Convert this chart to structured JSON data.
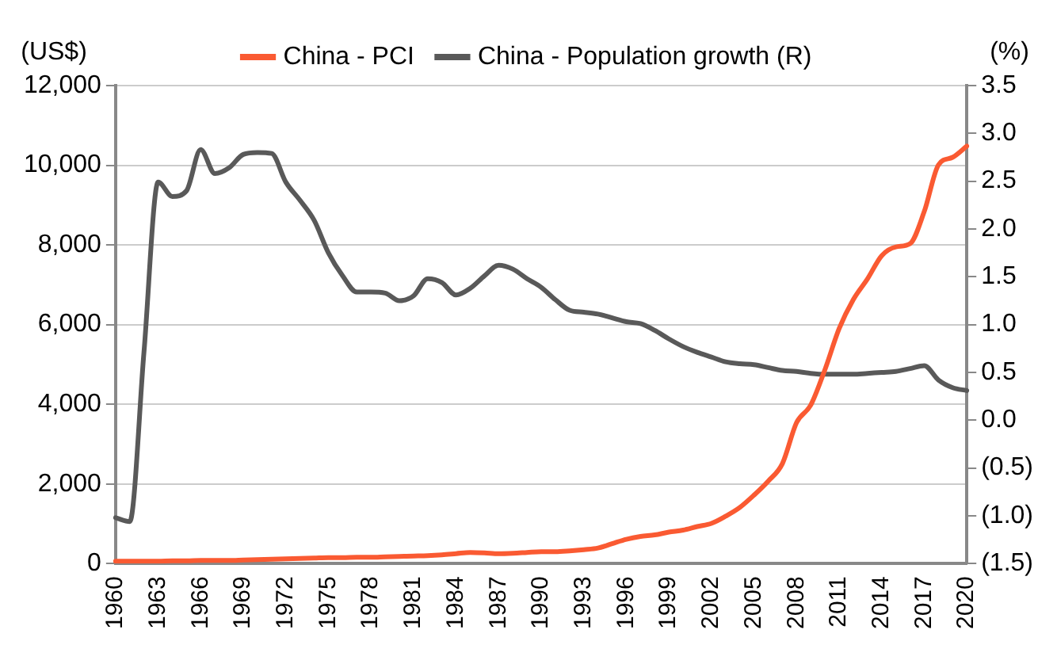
{
  "chart_data": {
    "type": "line",
    "ylabel": "(US$)",
    "y2label": "(%)",
    "categories": [
      "1960",
      null,
      null,
      "1963",
      null,
      null,
      "1966",
      null,
      null,
      "1969",
      null,
      null,
      "1972",
      null,
      null,
      "1975",
      null,
      null,
      "1978",
      null,
      null,
      "1981",
      null,
      null,
      "1984",
      null,
      null,
      "1987",
      null,
      null,
      "1990",
      null,
      null,
      "1993",
      null,
      null,
      "1996",
      null,
      null,
      "1999",
      null,
      null,
      "2002",
      null,
      null,
      "2005",
      null,
      null,
      "2008",
      null,
      null,
      "2011",
      null,
      null,
      "2014",
      null,
      null,
      "2017",
      null,
      null,
      "2020"
    ],
    "series": [
      {
        "name": "China - PCI",
        "color": "#fa5a32",
        "values": [
          60,
          60,
          60,
          60,
          70,
          70,
          80,
          80,
          80,
          90,
          100,
          110,
          120,
          130,
          140,
          150,
          150,
          160,
          160,
          170,
          180,
          190,
          200,
          220,
          250,
          280,
          270,
          250,
          260,
          280,
          300,
          300,
          320,
          350,
          390,
          500,
          610,
          680,
          720,
          790,
          840,
          930,
          1010,
          1190,
          1410,
          1720,
          2070,
          2510,
          3540,
          3980,
          4870,
          5900,
          6630,
          7150,
          7730,
          7950,
          8030,
          8840,
          10010,
          10200,
          10480
        ]
      },
      {
        "name": "China - Population growth (R)",
        "color": "#595959",
        "axis": "y2",
        "values": [
          -1.02,
          -1.06,
          0.71,
          2.49,
          2.34,
          2.4,
          2.83,
          2.58,
          2.64,
          2.78,
          2.8,
          2.79,
          2.49,
          2.3,
          2.09,
          1.75,
          1.51,
          1.34,
          1.34,
          1.33,
          1.25,
          1.3,
          1.48,
          1.44,
          1.31,
          1.38,
          1.51,
          1.62,
          1.58,
          1.48,
          1.39,
          1.26,
          1.15,
          1.13,
          1.11,
          1.07,
          1.03,
          1.01,
          0.94,
          0.85,
          0.77,
          0.71,
          0.66,
          0.61,
          0.59,
          0.58,
          0.55,
          0.52,
          0.51,
          0.49,
          0.48,
          0.48,
          0.48,
          0.49,
          0.5,
          0.51,
          0.54,
          0.57,
          0.42,
          0.34,
          0.31
        ]
      }
    ],
    "ylim": [
      0,
      12000
    ],
    "yticks": [
      {
        "value": 0,
        "label": "0"
      },
      {
        "value": 2000,
        "label": "2,000"
      },
      {
        "value": 4000,
        "label": "4,000"
      },
      {
        "value": 6000,
        "label": "6,000"
      },
      {
        "value": 8000,
        "label": "8,000"
      },
      {
        "value": 10000,
        "label": "10,000"
      },
      {
        "value": 12000,
        "label": "12,000"
      }
    ],
    "y2lim": [
      -1.5,
      3.5
    ],
    "y2ticks": [
      {
        "value": -1.5,
        "label": "(1.5)"
      },
      {
        "value": -1,
        "label": "(1.0)"
      },
      {
        "value": -0.5,
        "label": "(0.5)"
      },
      {
        "value": 0,
        "label": "0.0"
      },
      {
        "value": 0.5,
        "label": "0.5"
      },
      {
        "value": 1,
        "label": "1.0"
      },
      {
        "value": 1.5,
        "label": "1.5"
      },
      {
        "value": 2,
        "label": "2.0"
      },
      {
        "value": 2.5,
        "label": "2.5"
      },
      {
        "value": 3,
        "label": "3.0"
      },
      {
        "value": 3.5,
        "label": "3.5"
      }
    ],
    "grid": "y",
    "legend": "top",
    "marker": "none",
    "line_style": "solid"
  }
}
